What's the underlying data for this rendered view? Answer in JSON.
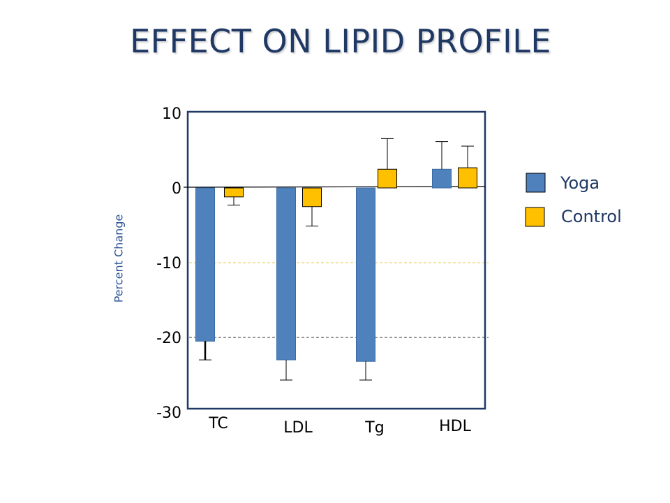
{
  "slide": {
    "title": "EFFECT ON LIPID PROFILE"
  },
  "colors": {
    "yoga": "#4f81bd",
    "control": "#ffc000",
    "title": "#1f3864",
    "frame": "#1f3864"
  },
  "chart_data": {
    "type": "bar",
    "ylabel": "Percent Change",
    "xlabel": "",
    "ylim": [
      -30,
      10
    ],
    "yticks": [
      "10",
      "0",
      "-10",
      "-20",
      "-30"
    ],
    "categories": [
      "TC",
      "LDL",
      "Tg",
      "HDL"
    ],
    "series": [
      {
        "name": "Yoga",
        "values": [
          -20.5,
          -23,
          -23.2,
          2.5
        ],
        "error_ends": [
          -23,
          -25.7,
          -25.7,
          6.2
        ]
      },
      {
        "name": "Control",
        "values": [
          -1.2,
          -2.5,
          2.5,
          2.7
        ],
        "error_ends": [
          -2.3,
          -5.1,
          6.6,
          5.6
        ]
      }
    ],
    "reference_lines": [
      {
        "y": -10,
        "style": "dashed",
        "color": "#e8c84a"
      },
      {
        "y": -20,
        "style": "dashed",
        "color": "#333333"
      }
    ],
    "legend": {
      "position": "right"
    }
  }
}
